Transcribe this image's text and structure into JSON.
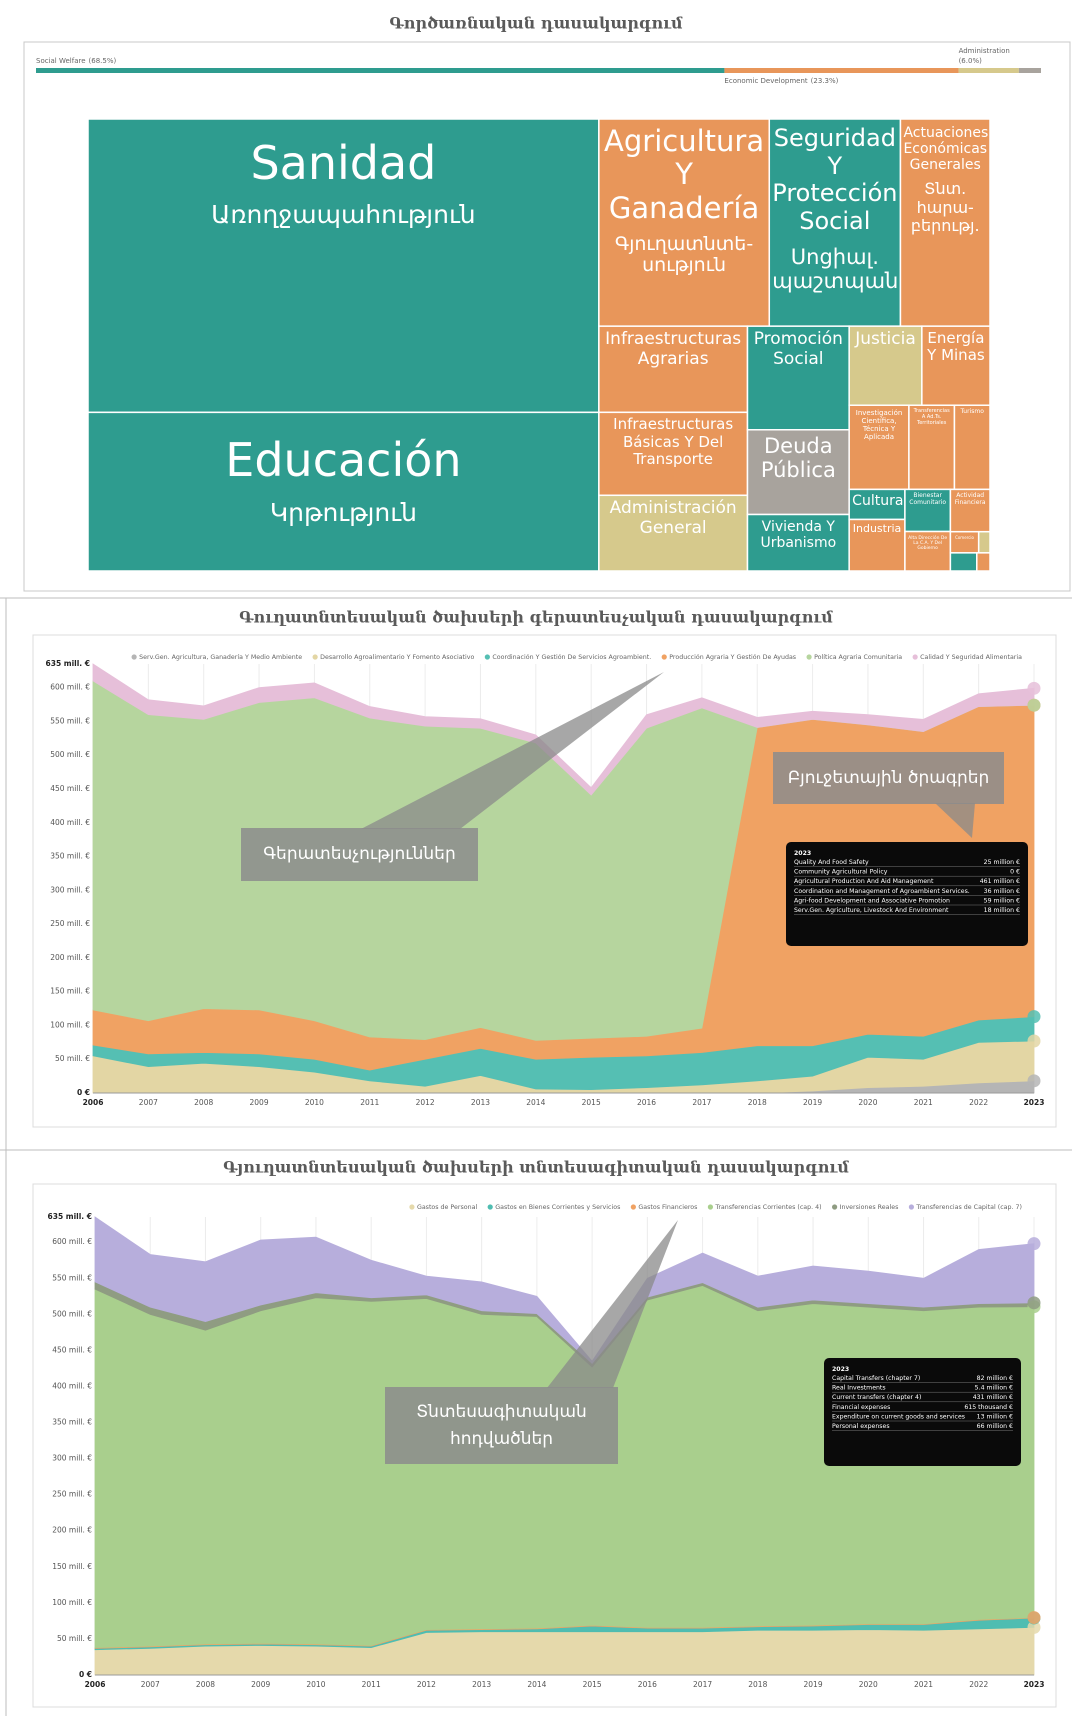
{
  "chart_data": [
    {
      "type": "bar",
      "orientation": "horizontal",
      "stacked": true,
      "title": "Գործառնական դասակարգում",
      "categories": [
        "Social Welfare",
        "Economic Development",
        "Administration",
        null
      ],
      "values": [
        68.5,
        23.3,
        6.0,
        2.2
      ],
      "value_labels": [
        "(68.5%)",
        "(23.3%)",
        "(6.0%)",
        null
      ],
      "colors": [
        "#2e9c8f",
        "#e8965a",
        "#d6c98c",
        "#a8a39d"
      ],
      "xlim": [
        0,
        100
      ]
    },
    {
      "type": "treemap",
      "items": [
        {
          "name": "Sanidad",
          "subtitle": "Առողջապահություն",
          "value": 1252,
          "color": "#2e9c8f"
        },
        {
          "name": "Educación",
          "subtitle": "Կրթություն",
          "value": 677,
          "color": "#2e9c8f"
        },
        {
          "name": "Agricultura Y Ganadería",
          "subtitle": "Գյուղատնտե-սություն",
          "value": 295,
          "color": "#e8965a"
        },
        {
          "name": "Seguridad Y Protección Social",
          "subtitle": "Սոցիալ. պաշտպան.",
          "value": 227,
          "color": "#2e9c8f"
        },
        {
          "name": "Actuaciones Económicas Generales",
          "subtitle": "Տնտ. հարա-բերությ.",
          "value": 155,
          "color": "#e8965a"
        },
        {
          "name": "Infraestructuras Agrarias",
          "value": 107,
          "color": "#e8965a"
        },
        {
          "name": "Infraestructuras Básicas Y Del Transporte",
          "value": 103,
          "color": "#e8965a"
        },
        {
          "name": "Administración General",
          "value": 94,
          "color": "#d6c98c"
        },
        {
          "name": "Promoción Social",
          "value": 88,
          "color": "#2e9c8f"
        },
        {
          "name": "Deuda Pública",
          "value": 72,
          "color": "#a8a39d"
        },
        {
          "name": "Vivienda Y Urbanismo",
          "value": 48,
          "color": "#2e9c8f"
        },
        {
          "name": "Justicia",
          "value": 48,
          "color": "#d6c98c"
        },
        {
          "name": "Energía Y Minas",
          "value": 45,
          "color": "#e8965a"
        },
        {
          "name": "Investigación Científica, Técnica Y Aplicada",
          "value": 42,
          "color": "#e8965a"
        },
        {
          "name": "Transferencias A Ad.Ts. Territoriales",
          "value": 32,
          "color": "#e8965a"
        },
        {
          "name": "Turismo",
          "value": 25,
          "color": "#e8965a"
        },
        {
          "name": "Cultura",
          "value": 14,
          "color": "#2e9c8f"
        },
        {
          "name": "Industria",
          "value": 24,
          "color": "#e8965a"
        },
        {
          "name": "Bienestar Comunitario",
          "value": 16,
          "color": "#2e9c8f"
        },
        {
          "name": "Alta Dirección De La C.A. Y Del Gobierno",
          "value": 15,
          "color": "#e8965a"
        },
        {
          "name": "Actividad Financiera",
          "value": 14,
          "color": "#e8965a"
        },
        {
          "name": "Comercio",
          "value": 5,
          "color": "#e8965a"
        },
        {
          "value": 2,
          "color": "#d6c98c"
        },
        {
          "value": 4,
          "color": "#2e9c8f"
        },
        {
          "value": 2,
          "color": "#e8965a"
        }
      ]
    },
    {
      "type": "area",
      "stacked": true,
      "grid": true,
      "title": "Գուղատնտեսական ծախսերի գերատեսչական դասակարգում",
      "x": [
        2006,
        2007,
        2008,
        2009,
        2010,
        2011,
        2012,
        2013,
        2014,
        2015,
        2016,
        2017,
        2018,
        2019,
        2020,
        2021,
        2022,
        2023
      ],
      "xlim": [
        2006,
        2023
      ],
      "xticks": [
        2006,
        2007,
        2008,
        2009,
        2010,
        2011,
        2012,
        2013,
        2014,
        2015,
        2016,
        2017,
        2018,
        2019,
        2020,
        2021,
        2022,
        2023
      ],
      "ylim": [
        0,
        635
      ],
      "yticks": [
        {
          "value": 0,
          "label": "0 €"
        },
        {
          "value": 50,
          "label": "50 mill. €"
        },
        {
          "value": 100,
          "label": "100 mill. €"
        },
        {
          "value": 150,
          "label": "150 mill. €"
        },
        {
          "value": 200,
          "label": "200 mill. €"
        },
        {
          "value": 250,
          "label": "250 mill. €"
        },
        {
          "value": 300,
          "label": "300 mill. €"
        },
        {
          "value": 350,
          "label": "350 mill. €"
        },
        {
          "value": 400,
          "label": "400 mill. €"
        },
        {
          "value": 450,
          "label": "450 mill. €"
        },
        {
          "value": 500,
          "label": "500 mill. €"
        },
        {
          "value": 550,
          "label": "550 mill. €"
        },
        {
          "value": 600,
          "label": "600 mill. €"
        },
        {
          "value": 635,
          "label": "635 mill. €"
        }
      ],
      "legend": "top-right",
      "series": [
        {
          "name": "Serv.Gen. Agricultura, Ganadería Y Medio Ambiente",
          "color": "#b5b5b5",
          "values": [
            0,
            0,
            0,
            0,
            0,
            0,
            0,
            0,
            0,
            0,
            0,
            0,
            0,
            3,
            8,
            10,
            15,
            18
          ]
        },
        {
          "name": "Desarrollo Agroalimentario Y Fomento Asociativo",
          "color": "#e3d6a4",
          "values": [
            55,
            39,
            44,
            39,
            31,
            18,
            10,
            26,
            6,
            5,
            8,
            12,
            18,
            22,
            45,
            40,
            60,
            59
          ]
        },
        {
          "name": "Coordinación Y Gestión De Servicios Agroambient.",
          "color": "#55bfb3",
          "values": [
            16,
            19,
            16,
            19,
            19,
            16,
            40,
            40,
            44,
            48,
            47,
            48,
            52,
            45,
            34,
            34,
            33,
            36
          ]
        },
        {
          "name": "Producción Agraria Y Gestión De Ayudas",
          "color": "#f0a263",
          "values": [
            52,
            49,
            65,
            65,
            57,
            49,
            29,
            31,
            28,
            28,
            29,
            36,
            471,
            483,
            458,
            451,
            464,
            461
          ]
        },
        {
          "name": "Política Agraria Comunitaria",
          "color": "#b6d59e",
          "values": [
            487,
            453,
            428,
            455,
            478,
            472,
            464,
            443,
            440,
            360,
            456,
            474,
            0,
            0,
            0,
            0,
            0,
            0
          ]
        },
        {
          "name": "Calidad Y Seguridad Alimentaria",
          "color": "#e6bfd9",
          "values": [
            25,
            22,
            20,
            22,
            22,
            17,
            14,
            14,
            12,
            11,
            20,
            15,
            15,
            12,
            15,
            18,
            19,
            25
          ]
        }
      ],
      "annotations": [
        "Գերատեսչություններ",
        "Բյուջետային ծրագրեր"
      ],
      "tooltip": {
        "title": "2023",
        "rows": [
          {
            "label": "Quality And Food Safety",
            "value": "25 million €"
          },
          {
            "label": "Community Agricultural Policy",
            "value": "0 €"
          },
          {
            "label": "Agricultural Production And Aid Management",
            "value": "461 million €"
          },
          {
            "label": "Coordination and Management of Agroambient Services.",
            "value": "36 million €"
          },
          {
            "label": "Agri-food Development and Associative Promotion",
            "value": "59 million €"
          },
          {
            "label": "Serv.Gen. Agriculture, Livestock And Environment",
            "value": "18 million €"
          }
        ]
      }
    },
    {
      "type": "area",
      "stacked": true,
      "grid": true,
      "title": "Գյուղատնտեսական ծախսերի տնտեսագիտական դասակարգում",
      "x": [
        2006,
        2007,
        2008,
        2009,
        2010,
        2011,
        2012,
        2013,
        2014,
        2015,
        2016,
        2017,
        2018,
        2019,
        2020,
        2021,
        2022,
        2023
      ],
      "xlim": [
        2006,
        2023
      ],
      "xticks": [
        2006,
        2007,
        2008,
        2009,
        2010,
        2011,
        2012,
        2013,
        2014,
        2015,
        2016,
        2017,
        2018,
        2019,
        2020,
        2021,
        2022,
        2023
      ],
      "ylim": [
        0,
        635
      ],
      "yticks": [
        {
          "value": 0,
          "label": "0 €"
        },
        {
          "value": 50,
          "label": "50 mill. €"
        },
        {
          "value": 100,
          "label": "100 mill. €"
        },
        {
          "value": 150,
          "label": "150 mill. €"
        },
        {
          "value": 200,
          "label": "200 mill. €"
        },
        {
          "value": 250,
          "label": "250 mill. €"
        },
        {
          "value": 300,
          "label": "300 mill. €"
        },
        {
          "value": 350,
          "label": "350 mill. €"
        },
        {
          "value": 400,
          "label": "400 mill. €"
        },
        {
          "value": 450,
          "label": "450 mill. €"
        },
        {
          "value": 500,
          "label": "500 mill. €"
        },
        {
          "value": 550,
          "label": "550 mill. €"
        },
        {
          "value": 600,
          "label": "600 mill. €"
        },
        {
          "value": 635,
          "label": "635 mill. €"
        }
      ],
      "legend": "top-right",
      "series": [
        {
          "name": "Gastos de Personal",
          "color": "#e5d9ab",
          "values": [
            35,
            37,
            40,
            41,
            40,
            38,
            59,
            60,
            60,
            60,
            60,
            60,
            62,
            62,
            63,
            62,
            64,
            66
          ]
        },
        {
          "name": "Gastos en Bienes Corrientes y Servicios",
          "color": "#4fbdb1",
          "values": [
            2,
            2,
            2,
            2,
            2,
            2,
            3,
            3,
            4,
            8,
            5,
            5,
            5,
            6,
            7,
            8,
            12,
            13
          ]
        },
        {
          "name": "Gastos Financieros",
          "color": "#f0a263",
          "values": [
            1,
            1,
            1,
            1,
            1,
            1,
            1,
            1,
            1,
            1,
            1,
            1,
            1,
            1,
            1,
            1,
            1,
            0.615
          ]
        },
        {
          "name": "Transferencias Corrientes (cap. 4)",
          "color": "#a9cf8d",
          "values": [
            497,
            460,
            435,
            461,
            480,
            477,
            459,
            436,
            432,
            358,
            454,
            474,
            437,
            446,
            439,
            434,
            433,
            431
          ]
        },
        {
          "name": "Inversiones Reales",
          "color": "#8f9c82",
          "values": [
            10,
            10,
            12,
            8,
            7,
            5,
            5,
            5,
            4,
            5,
            4,
            4,
            5,
            5,
            5,
            5,
            5,
            5.4
          ]
        },
        {
          "name": "Transferencias de Capital (cap. 7)",
          "color": "#b7aedc",
          "values": [
            90,
            73,
            83,
            90,
            77,
            52,
            26,
            40,
            24,
            3,
            26,
            41,
            43,
            47,
            45,
            40,
            75,
            82
          ]
        }
      ],
      "annotations": [
        "Տնտեսագիտական հոդվածներ"
      ],
      "tooltip": {
        "title": "2023",
        "rows": [
          {
            "label": "Capital Transfers (chapter 7)",
            "value": "82 million €"
          },
          {
            "label": "Real Investments",
            "value": "5.4 million €"
          },
          {
            "label": "Current transfers (chapter 4)",
            "value": "431 million €"
          },
          {
            "label": "Financial expenses",
            "value": "615 thousand €"
          },
          {
            "label": "Expenditure on current goods and services",
            "value": "13 million €"
          },
          {
            "label": "Personal expenses",
            "value": "66 million €"
          }
        ]
      }
    }
  ]
}
